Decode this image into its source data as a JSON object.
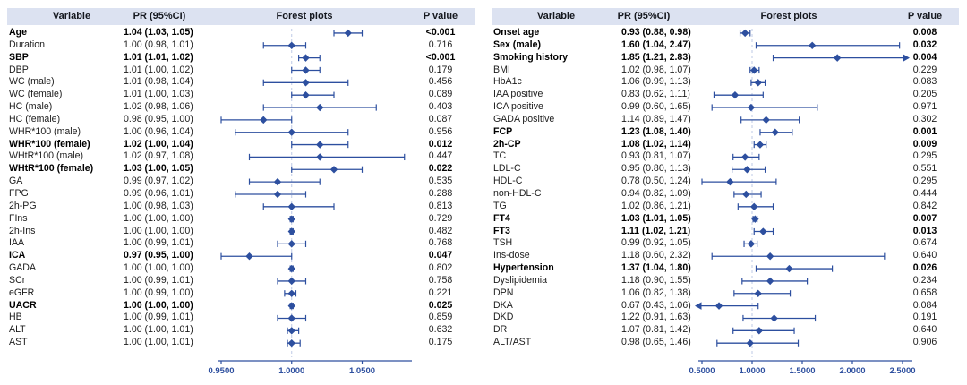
{
  "figure": {
    "accent_color": "#2d4f9f",
    "ref_line_color": "#bdc9e6",
    "header_bg": "#dce2f1"
  },
  "chart_data": [
    {
      "type": "forest",
      "panel": "left",
      "headers": {
        "variable": "Variable",
        "pr": "PR (95%CI)",
        "forest": "Forest plots",
        "p": "P value"
      },
      "axis": {
        "ticks": [
          0.95,
          1.0,
          1.05
        ],
        "tick_labels": [
          "0.9500",
          "1.0000",
          "1.0500"
        ],
        "ref": 1.0,
        "grid": false
      },
      "rows": [
        {
          "variable": "Age",
          "pr": "1.04 (1.03, 1.05)",
          "est": 1.04,
          "lo": 1.03,
          "hi": 1.05,
          "p": "<0.001",
          "bold": true
        },
        {
          "variable": "Duration",
          "pr": "1.00 (0.98, 1.01)",
          "est": 1.0,
          "lo": 0.98,
          "hi": 1.01,
          "p": "0.716",
          "bold": false
        },
        {
          "variable": "SBP",
          "pr": "1.01 (1.01, 1.02)",
          "est": 1.01,
          "lo": 1.005,
          "hi": 1.02,
          "p": "<0.001",
          "bold": true
        },
        {
          "variable": "DBP",
          "pr": "1.01 (1.00, 1.02)",
          "est": 1.01,
          "lo": 1.0,
          "hi": 1.02,
          "p": "0.179",
          "bold": false
        },
        {
          "variable": "WC (male)",
          "pr": "1.01 (0.98, 1.04)",
          "est": 1.01,
          "lo": 0.98,
          "hi": 1.04,
          "p": "0.456",
          "bold": false
        },
        {
          "variable": "WC (female)",
          "pr": "1.01 (1.00, 1.03)",
          "est": 1.01,
          "lo": 1.0,
          "hi": 1.03,
          "p": "0.089",
          "bold": false
        },
        {
          "variable": "HC (male)",
          "pr": "1.02 (0.98, 1.06)",
          "est": 1.02,
          "lo": 0.98,
          "hi": 1.06,
          "p": "0.403",
          "bold": false
        },
        {
          "variable": "HC (female)",
          "pr": "0.98 (0.95, 1.00)",
          "est": 0.98,
          "lo": 0.95,
          "hi": 1.0,
          "p": "0.087",
          "bold": false
        },
        {
          "variable": "WHR*100 (male)",
          "pr": "1.00 (0.96, 1.04)",
          "est": 1.0,
          "lo": 0.96,
          "hi": 1.04,
          "p": "0.956",
          "bold": false
        },
        {
          "variable": "WHR*100 (female)",
          "pr": "1.02 (1.00, 1.04)",
          "est": 1.02,
          "lo": 1.0,
          "hi": 1.04,
          "p": "0.012",
          "bold": true
        },
        {
          "variable": "WHtR*100 (male)",
          "pr": "1.02 (0.97, 1.08)",
          "est": 1.02,
          "lo": 0.97,
          "hi": 1.08,
          "p": "0.447",
          "bold": false
        },
        {
          "variable": "WHtR*100 (female)",
          "pr": "1.03 (1.00, 1.05)",
          "est": 1.03,
          "lo": 1.0,
          "hi": 1.05,
          "p": "0.022",
          "bold": true
        },
        {
          "variable": "GA",
          "pr": "0.99 (0.97, 1.02)",
          "est": 0.99,
          "lo": 0.97,
          "hi": 1.02,
          "p": "0.535",
          "bold": false
        },
        {
          "variable": "FPG",
          "pr": "0.99 (0.96, 1.01)",
          "est": 0.99,
          "lo": 0.96,
          "hi": 1.01,
          "p": "0.288",
          "bold": false
        },
        {
          "variable": "2h-PG",
          "pr": "1.00 (0.98, 1.03)",
          "est": 1.0,
          "lo": 0.98,
          "hi": 1.03,
          "p": "0.813",
          "bold": false
        },
        {
          "variable": "FIns",
          "pr": "1.00 (1.00, 1.00)",
          "est": 1.0,
          "lo": 0.999,
          "hi": 1.001,
          "p": "0.729",
          "bold": false
        },
        {
          "variable": "2h-Ins",
          "pr": "1.00 (1.00, 1.00)",
          "est": 1.0,
          "lo": 0.999,
          "hi": 1.001,
          "p": "0.482",
          "bold": false
        },
        {
          "variable": "IAA",
          "pr": "1.00 (0.99, 1.01)",
          "est": 1.0,
          "lo": 0.99,
          "hi": 1.01,
          "p": "0.768",
          "bold": false
        },
        {
          "variable": "ICA",
          "pr": "0.97 (0.95, 1.00)",
          "est": 0.97,
          "lo": 0.95,
          "hi": 1.0,
          "p": "0.047",
          "bold": true
        },
        {
          "variable": "GADA",
          "pr": "1.00 (1.00, 1.00)",
          "est": 1.0,
          "lo": 0.999,
          "hi": 1.001,
          "p": "0.802",
          "bold": false
        },
        {
          "variable": "SCr",
          "pr": "1.00 (0.99, 1.01)",
          "est": 1.0,
          "lo": 0.99,
          "hi": 1.01,
          "p": "0.758",
          "bold": false
        },
        {
          "variable": "eGFR",
          "pr": "1.00 (0.99, 1.00)",
          "est": 1.0,
          "lo": 0.995,
          "hi": 1.003,
          "p": "0.221",
          "bold": false
        },
        {
          "variable": "UACR",
          "pr": "1.00 (1.00, 1.00)",
          "est": 1.0,
          "lo": 0.999,
          "hi": 1.001,
          "p": "0.025",
          "bold": true
        },
        {
          "variable": "HB",
          "pr": "1.00 (0.99, 1.01)",
          "est": 1.0,
          "lo": 0.99,
          "hi": 1.01,
          "p": "0.859",
          "bold": false
        },
        {
          "variable": "ALT",
          "pr": "1.00 (1.00, 1.01)",
          "est": 1.0,
          "lo": 0.997,
          "hi": 1.005,
          "p": "0.632",
          "bold": false
        },
        {
          "variable": "AST",
          "pr": "1.00 (1.00, 1.01)",
          "est": 1.0,
          "lo": 0.997,
          "hi": 1.006,
          "p": "0.175",
          "bold": false
        }
      ]
    },
    {
      "type": "forest",
      "panel": "right",
      "headers": {
        "variable": "Variable",
        "pr": "PR (95%CI)",
        "forest": "Forest plots",
        "p": "P value"
      },
      "axis": {
        "ticks": [
          0.5,
          1.0,
          1.5,
          2.0,
          2.5
        ],
        "tick_labels": [
          "0.5000",
          "1.0000",
          "1.5000",
          "2.0000",
          "2.5000"
        ],
        "ref": 1.0,
        "grid": false
      },
      "rows": [
        {
          "variable": "Onset age",
          "pr": "0.93 (0.88, 0.98)",
          "est": 0.93,
          "lo": 0.88,
          "hi": 0.98,
          "p": "0.008",
          "bold": true
        },
        {
          "variable": "Sex (male)",
          "pr": "1.60 (1.04, 2.47)",
          "est": 1.6,
          "lo": 1.04,
          "hi": 2.47,
          "p": "0.032",
          "bold": true
        },
        {
          "variable": "Smoking history",
          "pr": "1.85 (1.21, 2.83)",
          "est": 1.85,
          "lo": 1.21,
          "hi": 2.83,
          "p": "0.004",
          "bold": true
        },
        {
          "variable": "BMI",
          "pr": "1.02 (0.98, 1.07)",
          "est": 1.02,
          "lo": 0.98,
          "hi": 1.07,
          "p": "0.229",
          "bold": false
        },
        {
          "variable": "HbA1c",
          "pr": "1.06 (0.99, 1.13)",
          "est": 1.06,
          "lo": 0.99,
          "hi": 1.13,
          "p": "0.083",
          "bold": false
        },
        {
          "variable": "IAA positive",
          "pr": "0.83 (0.62, 1.11)",
          "est": 0.83,
          "lo": 0.62,
          "hi": 1.11,
          "p": "0.205",
          "bold": false
        },
        {
          "variable": "ICA positive",
          "pr": "0.99 (0.60, 1.65)",
          "est": 0.99,
          "lo": 0.6,
          "hi": 1.65,
          "p": "0.971",
          "bold": false
        },
        {
          "variable": "GADA positive",
          "pr": "1.14 (0.89, 1.47)",
          "est": 1.14,
          "lo": 0.89,
          "hi": 1.47,
          "p": "0.302",
          "bold": false
        },
        {
          "variable": "FCP",
          "pr": "1.23 (1.08, 1.40)",
          "est": 1.23,
          "lo": 1.08,
          "hi": 1.4,
          "p": "0.001",
          "bold": true
        },
        {
          "variable": "2h-CP",
          "pr": "1.08 (1.02, 1.14)",
          "est": 1.08,
          "lo": 1.02,
          "hi": 1.14,
          "p": "0.009",
          "bold": true
        },
        {
          "variable": "TC",
          "pr": "0.93 (0.81, 1.07)",
          "est": 0.93,
          "lo": 0.81,
          "hi": 1.07,
          "p": "0.295",
          "bold": false
        },
        {
          "variable": "LDL-C",
          "pr": "0.95 (0.80, 1.13)",
          "est": 0.95,
          "lo": 0.8,
          "hi": 1.13,
          "p": "0.551",
          "bold": false
        },
        {
          "variable": "HDL-C",
          "pr": "0.78 (0.50, 1.24)",
          "est": 0.78,
          "lo": 0.5,
          "hi": 1.24,
          "p": "0.295",
          "bold": false
        },
        {
          "variable": "non-HDL-C",
          "pr": "0.94 (0.82, 1.09)",
          "est": 0.94,
          "lo": 0.82,
          "hi": 1.09,
          "p": "0.444",
          "bold": false
        },
        {
          "variable": "TG",
          "pr": "1.02 (0.86, 1.21)",
          "est": 1.02,
          "lo": 0.86,
          "hi": 1.21,
          "p": "0.842",
          "bold": false
        },
        {
          "variable": "FT4",
          "pr": "1.03 (1.01, 1.05)",
          "est": 1.03,
          "lo": 1.01,
          "hi": 1.05,
          "p": "0.007",
          "bold": true
        },
        {
          "variable": "FT3",
          "pr": "1.11 (1.02, 1.21)",
          "est": 1.11,
          "lo": 1.02,
          "hi": 1.21,
          "p": "0.013",
          "bold": true
        },
        {
          "variable": "TSH",
          "pr": "0.99 (0.92, 1.05)",
          "est": 0.99,
          "lo": 0.92,
          "hi": 1.05,
          "p": "0.674",
          "bold": false
        },
        {
          "variable": "Ins-dose",
          "pr": "1.18 (0.60, 2.32)",
          "est": 1.18,
          "lo": 0.6,
          "hi": 2.32,
          "p": "0.640",
          "bold": false
        },
        {
          "variable": "Hypertension",
          "pr": "1.37 (1.04, 1.80)",
          "est": 1.37,
          "lo": 1.04,
          "hi": 1.8,
          "p": "0.026",
          "bold": true
        },
        {
          "variable": "Dyslipidemia",
          "pr": "1.18 (0.90, 1.55)",
          "est": 1.18,
          "lo": 0.9,
          "hi": 1.55,
          "p": "0.234",
          "bold": false
        },
        {
          "variable": "DPN",
          "pr": "1.06 (0.82, 1.38)",
          "est": 1.06,
          "lo": 0.82,
          "hi": 1.38,
          "p": "0.658",
          "bold": false
        },
        {
          "variable": "DKA",
          "pr": "0.67 (0.43, 1.06)",
          "est": 0.67,
          "lo": 0.43,
          "hi": 1.06,
          "p": "0.084",
          "bold": false
        },
        {
          "variable": "DKD",
          "pr": "1.22 (0.91, 1.63)",
          "est": 1.22,
          "lo": 0.91,
          "hi": 1.63,
          "p": "0.191",
          "bold": false
        },
        {
          "variable": "DR",
          "pr": "1.07 (0.81, 1.42)",
          "est": 1.07,
          "lo": 0.81,
          "hi": 1.42,
          "p": "0.640",
          "bold": false
        },
        {
          "variable": "ALT/AST",
          "pr": "0.98 (0.65, 1.46)",
          "est": 0.98,
          "lo": 0.65,
          "hi": 1.46,
          "p": "0.906",
          "bold": false
        }
      ]
    }
  ]
}
